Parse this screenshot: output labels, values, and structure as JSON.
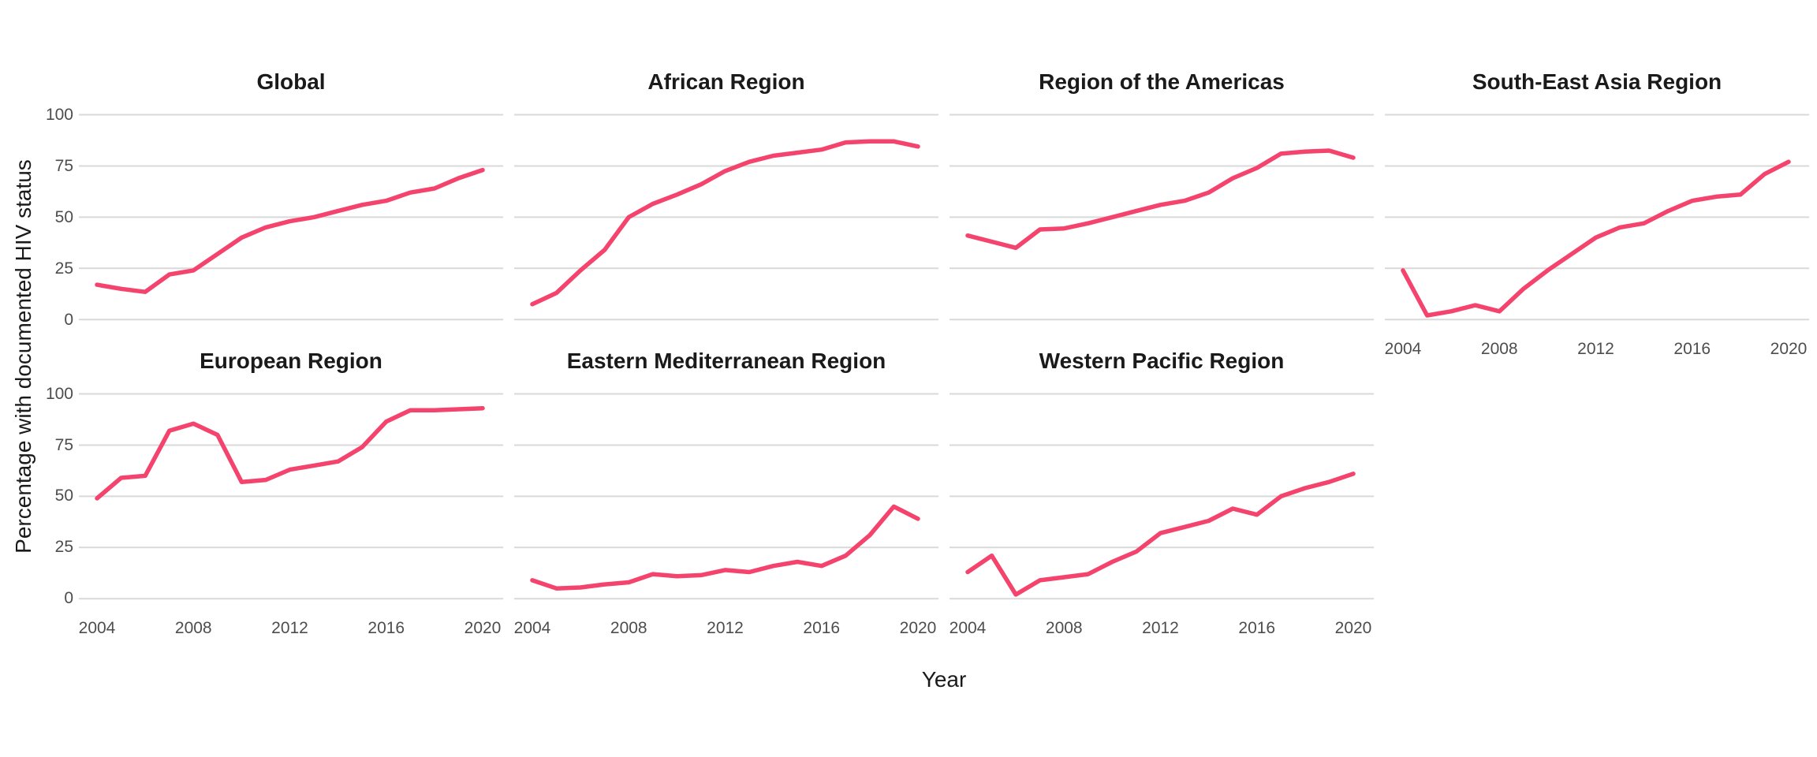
{
  "chart": {
    "y_axis_title": "Percentage with documented HIV status",
    "x_axis_title": "Year",
    "y_ticks": [
      "100",
      "75",
      "50",
      "25",
      "0"
    ],
    "x_ticks": [
      "2004",
      "2008",
      "2012",
      "2016",
      "2020"
    ],
    "colors": {
      "line": "#f4436c",
      "gridline": "#d9d9d9",
      "tick_text": "#4d4d4d",
      "title_text": "#1a1a1a",
      "background": "#ffffff"
    }
  },
  "chart_data": {
    "type": "line",
    "title": "",
    "xlabel": "Year",
    "ylabel": "Percentage with documented HIV status",
    "ylim": [
      0,
      100
    ],
    "xlim": [
      2004,
      2020
    ],
    "grid": "horizontal-only",
    "legend": "none",
    "x": [
      2004,
      2005,
      2006,
      2007,
      2008,
      2009,
      2010,
      2011,
      2012,
      2013,
      2014,
      2015,
      2016,
      2017,
      2018,
      2019,
      2020
    ],
    "y_tick_values": [
      0,
      25,
      50,
      75,
      100
    ],
    "x_tick_values": [
      2004,
      2008,
      2012,
      2016,
      2020
    ],
    "facets": [
      {
        "title": "Global",
        "row": 0,
        "col": 0,
        "values": [
          17,
          15,
          13.5,
          22,
          24,
          32,
          40,
          45,
          48,
          50,
          53,
          56,
          58,
          62,
          64,
          69,
          73
        ]
      },
      {
        "title": "African Region",
        "row": 0,
        "col": 1,
        "values": [
          7.5,
          13,
          24,
          34,
          50,
          56.5,
          61,
          66,
          72.5,
          77,
          80,
          81.5,
          83,
          86.5,
          87,
          87,
          84.5
        ]
      },
      {
        "title": "Region of the Americas",
        "row": 0,
        "col": 2,
        "values": [
          41,
          38,
          35,
          44,
          44.5,
          47,
          50,
          53,
          56,
          58,
          62,
          69,
          74,
          81,
          82,
          82.5,
          79
        ]
      },
      {
        "title": "South-East Asia Region",
        "row": 0,
        "col": 3,
        "values": [
          24,
          2,
          4,
          7,
          4,
          15,
          24,
          32,
          40,
          45,
          47,
          53,
          58,
          60,
          61,
          71,
          77
        ]
      },
      {
        "title": "European Region",
        "row": 1,
        "col": 0,
        "values": [
          49,
          59,
          60,
          82,
          85.5,
          80,
          57,
          58,
          63,
          65,
          67,
          74,
          86.5,
          92,
          92,
          92.5,
          93
        ]
      },
      {
        "title": "Eastern Mediterranean Region",
        "row": 1,
        "col": 1,
        "values": [
          9,
          5,
          5.5,
          7,
          8,
          12,
          11,
          11.5,
          14,
          13,
          16,
          18,
          16,
          21,
          31,
          45,
          39
        ]
      },
      {
        "title": "Western Pacific Region",
        "row": 1,
        "col": 2,
        "values": [
          13,
          21,
          2,
          9,
          10.5,
          12,
          18,
          23,
          32,
          35,
          38,
          44,
          41,
          50,
          54,
          57,
          61
        ]
      }
    ]
  }
}
